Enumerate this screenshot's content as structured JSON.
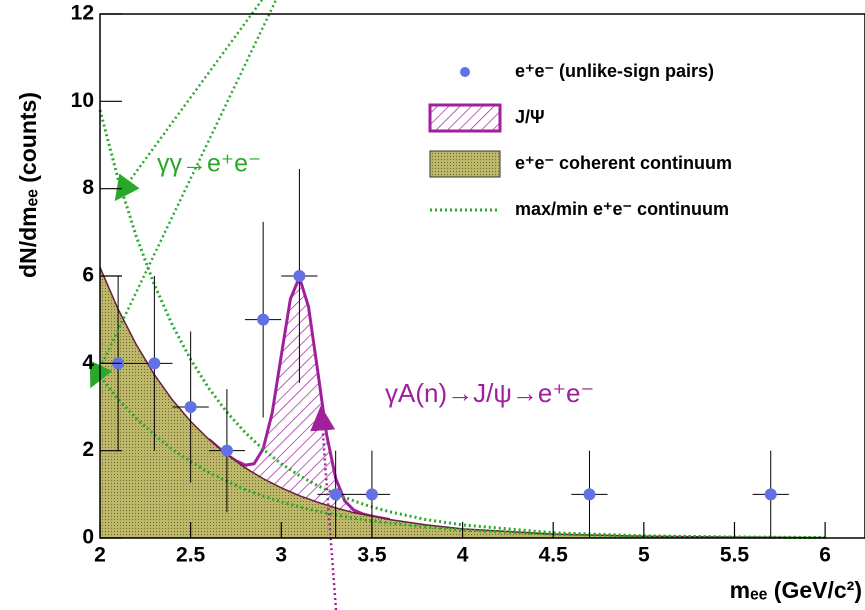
{
  "chart_data": {
    "type": "scatter",
    "x_label": "mₑₑ (GeV/c²)",
    "y_label": "dN/dmₑₑ (counts)",
    "annotations": [
      "γγ→e⁺e⁻",
      "γA(n)→J/ψ→e⁺e⁻"
    ],
    "xlim": [
      2,
      6.22
    ],
    "ylim": [
      0,
      12
    ],
    "xticks": [
      2,
      2.5,
      3,
      3.5,
      4,
      4.5,
      5,
      5.5,
      6
    ],
    "yticks": [
      0,
      2,
      4,
      6,
      8,
      10,
      12
    ],
    "series": [
      {
        "name": "e⁺e⁻ (unlike-sign pairs)",
        "kind": "points",
        "color": "#6272e6",
        "x": [
          2.1,
          2.3,
          2.5,
          2.7,
          2.9,
          3.1,
          3.3,
          3.5,
          4.7,
          5.7
        ],
        "values": [
          4,
          4,
          3,
          2,
          5,
          6,
          1,
          1,
          1,
          1
        ],
        "errors": [
          2,
          2,
          1.73,
          1.41,
          2.24,
          2.45,
          1,
          1,
          1,
          1
        ],
        "x_errors": [
          0.1,
          0.1,
          0.1,
          0.1,
          0.1,
          0.1,
          0.1,
          0.1,
          0.1,
          0.1
        ]
      },
      {
        "name": "J/Ψ",
        "kind": "hatch",
        "color": "#a0209c",
        "x": [
          2.6,
          2.65,
          2.7,
          2.75,
          2.8,
          2.85,
          2.9,
          2.95,
          3.0,
          3.05,
          3.1,
          3.15,
          3.2,
          3.25,
          3.3,
          3.35,
          3.4,
          3.45,
          3.5,
          3.6
        ],
        "values": [
          2.26,
          2.08,
          1.91,
          1.77,
          1.67,
          1.7,
          2.04,
          2.87,
          4.18,
          5.47,
          5.97,
          5.3,
          3.85,
          2.37,
          1.37,
          0.85,
          0.64,
          0.55,
          0.5,
          0.42
        ]
      },
      {
        "name": "e⁺e⁻ coherent continuum",
        "kind": "fill",
        "color": "#bdb86a",
        "x": [
          2.0,
          2.1,
          2.2,
          2.3,
          2.4,
          2.5,
          2.6,
          2.7,
          2.8,
          2.9,
          3.0,
          3.1,
          3.2,
          3.3,
          3.4,
          3.5,
          3.6,
          3.8,
          4.0,
          4.5,
          5.0,
          5.5,
          6.0
        ],
        "values": [
          6.2,
          5.24,
          4.43,
          3.74,
          3.16,
          2.67,
          2.26,
          1.91,
          1.61,
          1.36,
          1.15,
          0.97,
          0.82,
          0.69,
          0.58,
          0.5,
          0.42,
          0.3,
          0.21,
          0.09,
          0.04,
          0.02,
          0.01
        ]
      },
      {
        "name": "max/min e⁺e⁻ continuum",
        "kind": "dotted",
        "color": "#2aa82a",
        "x": [
          2.0,
          2.1,
          2.2,
          2.3,
          2.4,
          2.5,
          2.6,
          2.7,
          2.8,
          2.9,
          3.0,
          3.1,
          3.2,
          3.3,
          3.4,
          3.5,
          3.6,
          3.8,
          4.0,
          4.5,
          5.0,
          5.5,
          6.0
        ],
        "values": [
          9.8,
          8.22,
          6.91,
          5.8,
          4.87,
          4.09,
          3.43,
          2.88,
          2.42,
          2.03,
          1.7,
          1.43,
          1.2,
          1.01,
          0.85,
          0.71,
          0.6,
          0.42,
          0.3,
          0.12,
          0.05,
          0.02,
          0.01
        ]
      },
      {
        "kind": "dotted",
        "color": "#2aa82a",
        "x": [
          2.0,
          2.1,
          2.2,
          2.3,
          2.4,
          2.5,
          2.6,
          2.7,
          2.8,
          2.9,
          3.0,
          3.1,
          3.2,
          3.3,
          3.4,
          3.5,
          3.6,
          3.8,
          4.0,
          4.5,
          5.0,
          5.5,
          6.0
        ],
        "values": [
          3.7,
          3.18,
          2.74,
          2.36,
          2.03,
          1.75,
          1.5,
          1.3,
          1.11,
          0.96,
          0.83,
          0.71,
          0.61,
          0.53,
          0.45,
          0.39,
          0.34,
          0.25,
          0.18,
          0.09,
          0.04,
          0.02,
          0.01
        ]
      }
    ]
  }
}
